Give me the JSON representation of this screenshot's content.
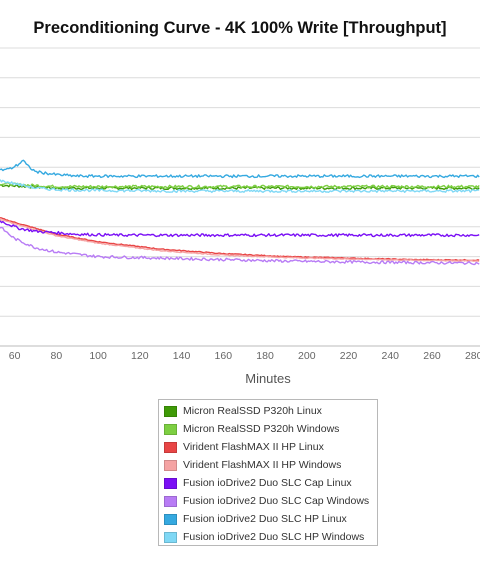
{
  "chart_data": {
    "type": "line",
    "title": "Preconditioning Curve - 4K 100% Write [Throughput]",
    "xlabel": "Minutes",
    "ylabel": "",
    "x_ticks": [
      60,
      80,
      100,
      120,
      140,
      160,
      180,
      200,
      220,
      240,
      260,
      280
    ],
    "xlim": [
      53,
      283
    ],
    "ylim": [
      0,
      10
    ],
    "grid": true,
    "legend": "bottom-center",
    "series": [
      {
        "name": "Micron RealSSD P320h Linux",
        "color": "#3f9a07",
        "x": [
          53,
          80,
          120,
          160,
          200,
          240,
          283
        ],
        "y": [
          5.4,
          5.3,
          5.3,
          5.3,
          5.3,
          5.3,
          5.3
        ]
      },
      {
        "name": "Micron RealSSD P320h Windows",
        "color": "#7dcf42",
        "x": [
          53,
          80,
          120,
          160,
          200,
          240,
          283
        ],
        "y": [
          5.45,
          5.35,
          5.35,
          5.35,
          5.35,
          5.35,
          5.35
        ]
      },
      {
        "name": "Virident FlashMAX II HP Linux",
        "color": "#e84545",
        "x": [
          53,
          60,
          70,
          80,
          100,
          130,
          160,
          190,
          220,
          250,
          283
        ],
        "y": [
          4.3,
          4.15,
          3.95,
          3.75,
          3.5,
          3.25,
          3.1,
          3.0,
          2.95,
          2.9,
          2.88
        ]
      },
      {
        "name": "Virident FlashMAX II HP Windows",
        "color": "#f5a3a3",
        "x": [
          53,
          60,
          70,
          80,
          100,
          130,
          160,
          190,
          220,
          250,
          283
        ],
        "y": [
          4.25,
          4.1,
          3.9,
          3.7,
          3.45,
          3.2,
          3.05,
          2.97,
          2.92,
          2.88,
          2.85
        ]
      },
      {
        "name": "Fusion ioDrive2 Duo SLC Cap Linux",
        "color": "#7a0ff5",
        "x": [
          53,
          62,
          70,
          80,
          90,
          110,
          140,
          180,
          220,
          260,
          283
        ],
        "y": [
          4.2,
          3.95,
          3.85,
          3.8,
          3.75,
          3.72,
          3.72,
          3.72,
          3.72,
          3.72,
          3.72
        ]
      },
      {
        "name": "Fusion ioDrive2 Duo SLC Cap Windows",
        "color": "#b87cf5",
        "x": [
          53,
          60,
          70,
          80,
          100,
          130,
          160,
          190,
          220,
          250,
          283
        ],
        "y": [
          4.0,
          3.6,
          3.3,
          3.15,
          3.0,
          2.95,
          2.9,
          2.85,
          2.82,
          2.8,
          2.78
        ]
      },
      {
        "name": "Fusion ioDrive2 Duo SLC HP Linux",
        "color": "#35a9e0",
        "x": [
          53,
          58,
          62,
          64,
          66,
          70,
          75,
          80,
          90,
          120,
          160,
          200,
          240,
          283
        ],
        "y": [
          5.9,
          5.95,
          6.1,
          6.25,
          6.05,
          5.85,
          5.8,
          5.75,
          5.7,
          5.7,
          5.7,
          5.7,
          5.7,
          5.7
        ]
      },
      {
        "name": "Fusion ioDrive2 Duo SLC HP Windows",
        "color": "#7fd8f5",
        "x": [
          53,
          60,
          70,
          80,
          100,
          140,
          180,
          220,
          260,
          283
        ],
        "y": [
          5.55,
          5.45,
          5.3,
          5.25,
          5.22,
          5.2,
          5.2,
          5.2,
          5.2,
          5.2
        ]
      }
    ]
  }
}
